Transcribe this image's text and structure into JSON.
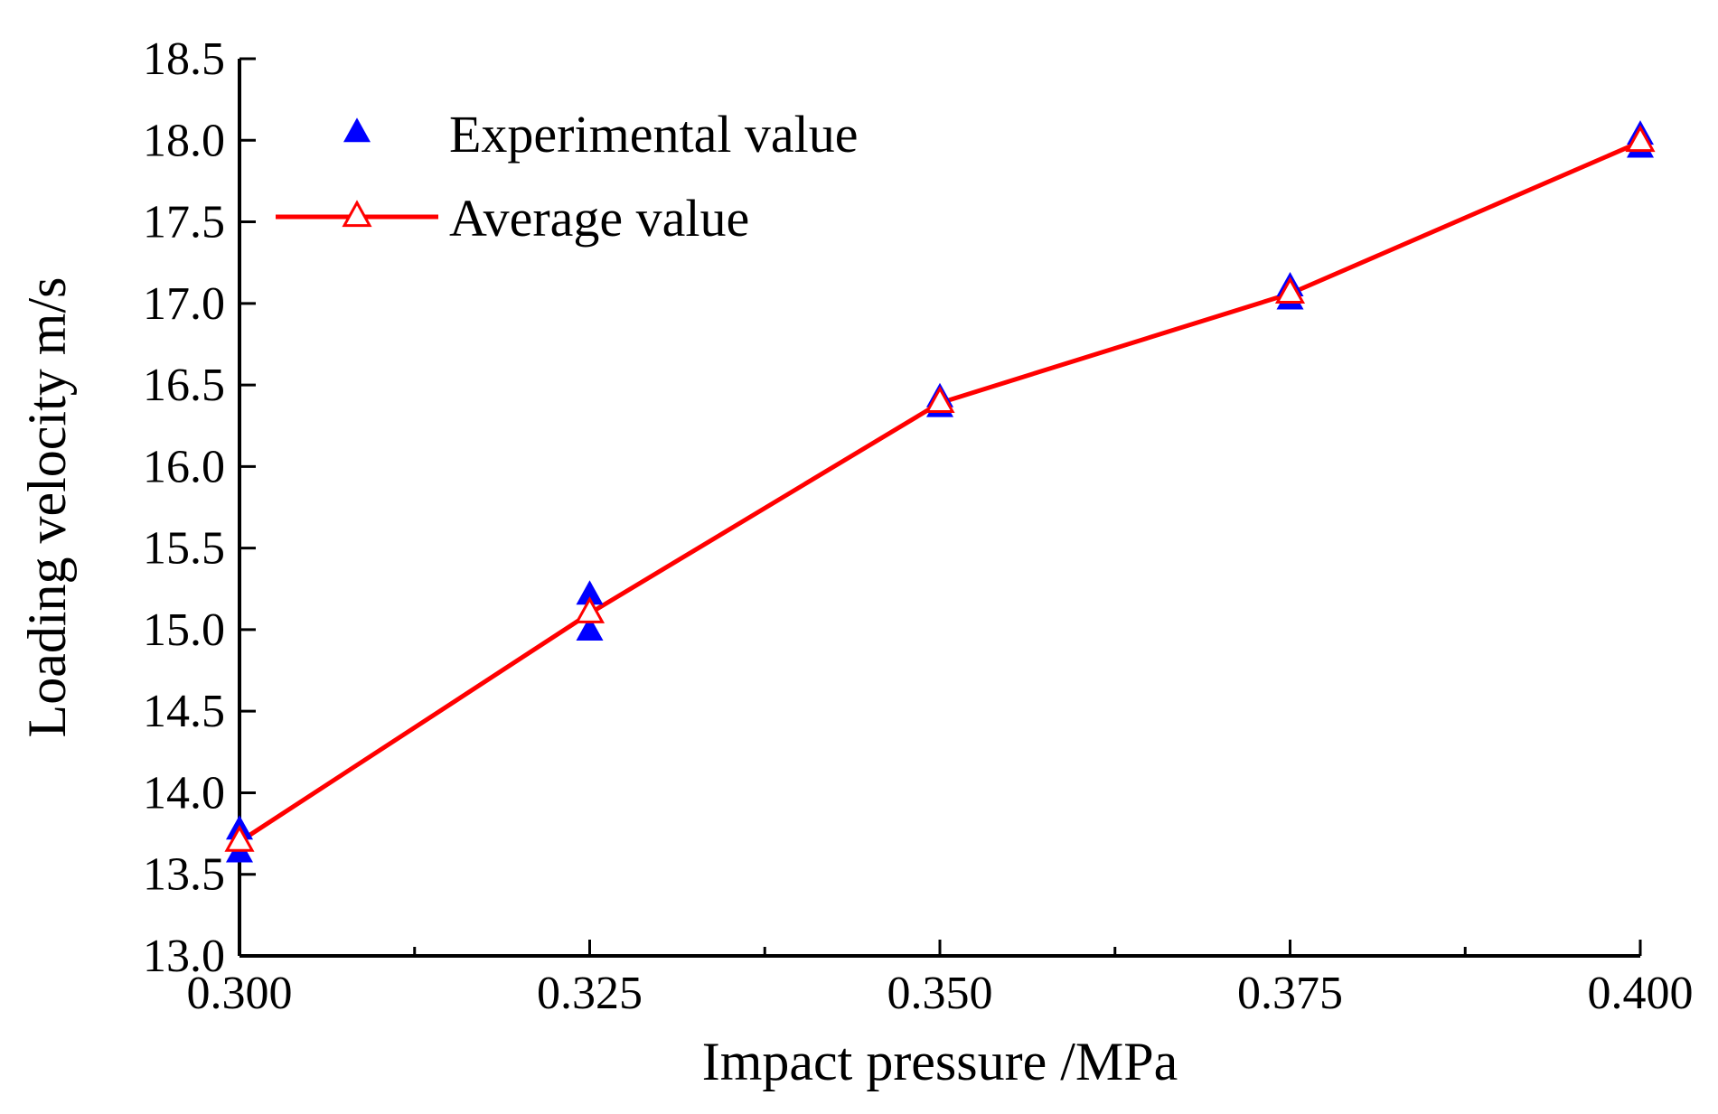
{
  "chart_data": {
    "type": "line",
    "title": "",
    "xlabel": "Impact pressure /MPa",
    "ylabel": "Loading velocity m/s",
    "xlim": [
      0.3,
      0.4
    ],
    "ylim": [
      13.0,
      18.5
    ],
    "x_ticks": [
      "0.300",
      "0.325",
      "0.350",
      "0.375",
      "0.400"
    ],
    "y_ticks": [
      "13.0",
      "13.5",
      "14.0",
      "14.5",
      "15.0",
      "15.5",
      "16.0",
      "16.5",
      "17.0",
      "17.5",
      "18.0",
      "18.5"
    ],
    "grid": false,
    "legend_position": "top-left",
    "series": [
      {
        "name": "Experimental value",
        "kind": "scatter",
        "marker": "filled-triangle",
        "color": "#0000ff",
        "points": [
          [
            0.3,
            13.77
          ],
          [
            0.3,
            13.63
          ],
          [
            0.325,
            15.21
          ],
          [
            0.325,
            14.99
          ],
          [
            0.35,
            16.42
          ],
          [
            0.35,
            16.36
          ],
          [
            0.375,
            17.1
          ],
          [
            0.375,
            17.02
          ],
          [
            0.4,
            18.03
          ],
          [
            0.4,
            17.95
          ]
        ]
      },
      {
        "name": "Average value",
        "kind": "line",
        "marker": "hollow-triangle",
        "color": "#ff0000",
        "x": [
          0.3,
          0.325,
          0.35,
          0.375,
          0.4
        ],
        "y": [
          13.7,
          15.1,
          16.39,
          17.06,
          17.99
        ]
      }
    ]
  }
}
